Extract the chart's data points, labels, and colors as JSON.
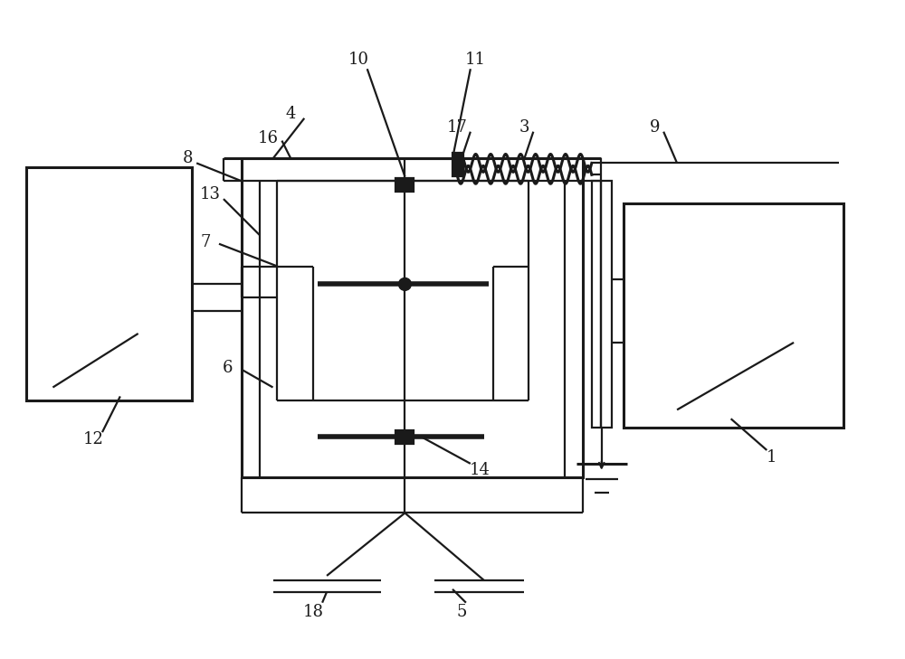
{
  "background_color": "#ffffff",
  "line_color": "#1a1a1a",
  "lw": 1.6,
  "lw_thick": 4.0,
  "lw_mid": 2.2,
  "fig_width": 10.0,
  "fig_height": 7.29
}
